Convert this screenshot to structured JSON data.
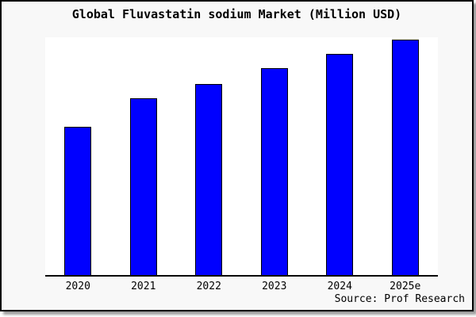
{
  "figure": {
    "title": "Global Fluvastatin sodium Market (Million USD)",
    "source": "Source: Prof Research"
  },
  "chart_data": {
    "type": "bar",
    "title": "Global Fluvastatin sodium Market (Million USD)",
    "categories": [
      "2020",
      "2021",
      "2022",
      "2023",
      "2024",
      "2025e"
    ],
    "values": [
      63,
      75,
      81,
      88,
      94,
      100
    ],
    "values_note": "No y-axis ticks, gridlines or data labels are shown in the chart; values are relative estimates read from bar heights with 2025e normalized to 100",
    "xlabel": "",
    "ylabel": "",
    "ylim": [
      0,
      101
    ],
    "grid": false,
    "legend": false,
    "bar_color": "#0000ff",
    "bar_edge_color": "#000000",
    "plot_bg": "#ffffff",
    "figure_bg": "#f8f8f8",
    "source": "Source: Prof Research"
  }
}
